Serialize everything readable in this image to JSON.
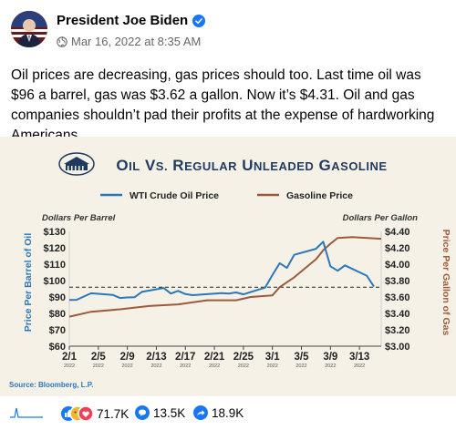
{
  "post": {
    "author": "President Joe Biden",
    "timestamp": "Mar 16, 2022 at 8:35 AM",
    "text": "Oil prices are decreasing, gas prices should too. Last time oil was $96 a barrel, gas was $3.62 a gallon. Now it’s $4.31. Oil and gas companies shouldn’t pad their profits at the expense of hardworking Americans."
  },
  "reactions": {
    "likes": "71.7K",
    "comments": "13.5K",
    "shares": "18.9K"
  },
  "colors": {
    "oil": "#2a78b8",
    "gas": "#9c5a3c",
    "navy": "#1f3a5f",
    "background": "#f6f1e7"
  },
  "chart_data": {
    "type": "line",
    "title": "Oil vs. Regular Unleaded Gasoline",
    "left_axis_units": "Dollars Per Barrel",
    "right_axis_units": "Dollars Per Gallon",
    "ylabel": "Price Per Barrel of Oil",
    "y2label": "Price Per Gallon of Gas",
    "source": "Source: Bloomberg, L.P.",
    "x_ticks": [
      {
        "day": "2/1",
        "year": "2022"
      },
      {
        "day": "2/5",
        "year": "2022"
      },
      {
        "day": "2/9",
        "year": "2022"
      },
      {
        "day": "2/13",
        "year": "2022"
      },
      {
        "day": "2/17",
        "year": "2022"
      },
      {
        "day": "2/21",
        "year": "2022"
      },
      {
        "day": "2/25",
        "year": "2022"
      },
      {
        "day": "3/1",
        "year": "2022"
      },
      {
        "day": "3/5",
        "year": "2022"
      },
      {
        "day": "3/9",
        "year": "2022"
      },
      {
        "day": "3/13",
        "year": "2022"
      }
    ],
    "y_ticks_left": [
      "$130",
      "$120",
      "$110",
      "$100",
      "$90",
      "$80",
      "$70",
      "$60"
    ],
    "y_ticks_right": [
      "$4.40",
      "$4.20",
      "$4.00",
      "$3.80",
      "$3.60",
      "$3.40",
      "$3.20",
      "$3.00"
    ],
    "ylim": [
      60,
      130
    ],
    "y2lim": [
      3.0,
      4.4
    ],
    "reference_value": 96,
    "series": [
      {
        "name": "WTI Crude Oil Price",
        "color": "#2a78b8",
        "axis": "left",
        "points": [
          [
            "2/1",
            88.2
          ],
          [
            "2/2",
            88.3
          ],
          [
            "2/3",
            90.3
          ],
          [
            "2/4",
            92.3
          ],
          [
            "2/7",
            91.3
          ],
          [
            "2/8",
            89.4
          ],
          [
            "2/9",
            89.7
          ],
          [
            "2/10",
            89.9
          ],
          [
            "2/11",
            93.1
          ],
          [
            "2/14",
            95.5
          ],
          [
            "2/15",
            92.1
          ],
          [
            "2/16",
            93.7
          ],
          [
            "2/17",
            91.8
          ],
          [
            "2/18",
            91.1
          ],
          [
            "2/22",
            92.4
          ],
          [
            "2/23",
            92.1
          ],
          [
            "2/24",
            92.8
          ],
          [
            "2/25",
            91.6
          ],
          [
            "2/28",
            95.7
          ],
          [
            "3/1",
            103.4
          ],
          [
            "3/2",
            110.6
          ],
          [
            "3/3",
            107.7
          ],
          [
            "3/4",
            115.7
          ],
          [
            "3/7",
            119.4
          ],
          [
            "3/8",
            123.7
          ],
          [
            "3/9",
            108.7
          ],
          [
            "3/10",
            106.0
          ],
          [
            "3/11",
            109.3
          ],
          [
            "3/14",
            103.0
          ],
          [
            "3/15",
            96.4
          ]
        ]
      },
      {
        "name": "Gasoline Price",
        "color": "#9c5a3c",
        "axis": "right",
        "points": [
          [
            "2/1",
            3.36
          ],
          [
            "2/4",
            3.42
          ],
          [
            "2/8",
            3.45
          ],
          [
            "2/12",
            3.49
          ],
          [
            "2/16",
            3.51
          ],
          [
            "2/20",
            3.56
          ],
          [
            "2/24",
            3.56
          ],
          [
            "2/26",
            3.6
          ],
          [
            "3/1",
            3.62
          ],
          [
            "3/2",
            3.72
          ],
          [
            "3/4",
            3.84
          ],
          [
            "3/7",
            4.06
          ],
          [
            "3/8",
            4.17
          ],
          [
            "3/9",
            4.25
          ],
          [
            "3/10",
            4.32
          ],
          [
            "3/12",
            4.33
          ],
          [
            "3/16",
            4.31
          ]
        ]
      }
    ]
  }
}
